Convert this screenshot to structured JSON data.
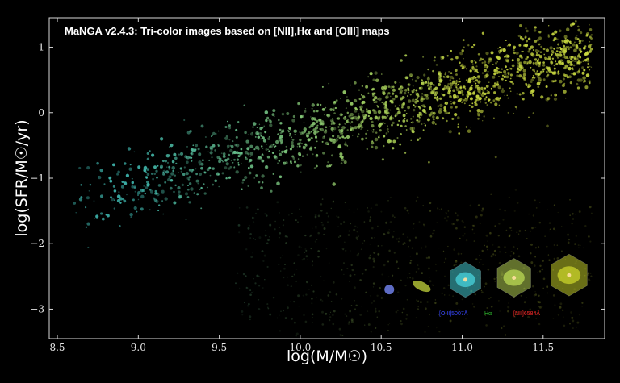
{
  "chart_data": {
    "type": "scatter",
    "title": "MaNGA v2.4.3: Tri-color images based on [NII],Hα and [OIII] maps",
    "xlabel": "log(M/M☉)",
    "ylabel": "log(SFR/M☉/yr)",
    "xlim": [
      8.45,
      11.88
    ],
    "ylim": [
      -3.45,
      1.45
    ],
    "xticks": [
      8.5,
      9.0,
      9.5,
      10.0,
      10.5,
      11.0,
      11.5
    ],
    "xtick_labels": [
      "8.5",
      "9.0",
      "9.5",
      "10.0",
      "10.5",
      "11.0",
      "11.5"
    ],
    "yticks": [
      1,
      0,
      -1,
      -2,
      -3
    ],
    "ytick_labels": [
      "1",
      "0",
      "−1",
      "−2",
      "−3"
    ],
    "grid": false,
    "background": "#000000",
    "frame_color": "#d8d8d8",
    "point_color_low_mass": "#3fb8b0",
    "point_color_high_mass": "#c8d840",
    "example_galaxies": [
      {
        "x": 10.55,
        "y": -2.7,
        "color": "#6f7fe8"
      },
      {
        "x": 10.75,
        "y": -2.65,
        "color": "#b8c838"
      },
      {
        "x": 11.02,
        "y": -2.55,
        "color": "#44c8d0"
      },
      {
        "x": 11.32,
        "y": -2.52,
        "color": "#b0cc50"
      },
      {
        "x": 11.66,
        "y": -2.48,
        "color": "#c0c828"
      }
    ],
    "legend": [
      {
        "label": "[OIII]5007Å",
        "color": "#3848ff"
      },
      {
        "label": "Hα",
        "color": "#30c030"
      },
      {
        "label": "[NII]6584Å",
        "color": "#ff2a2a"
      }
    ]
  }
}
